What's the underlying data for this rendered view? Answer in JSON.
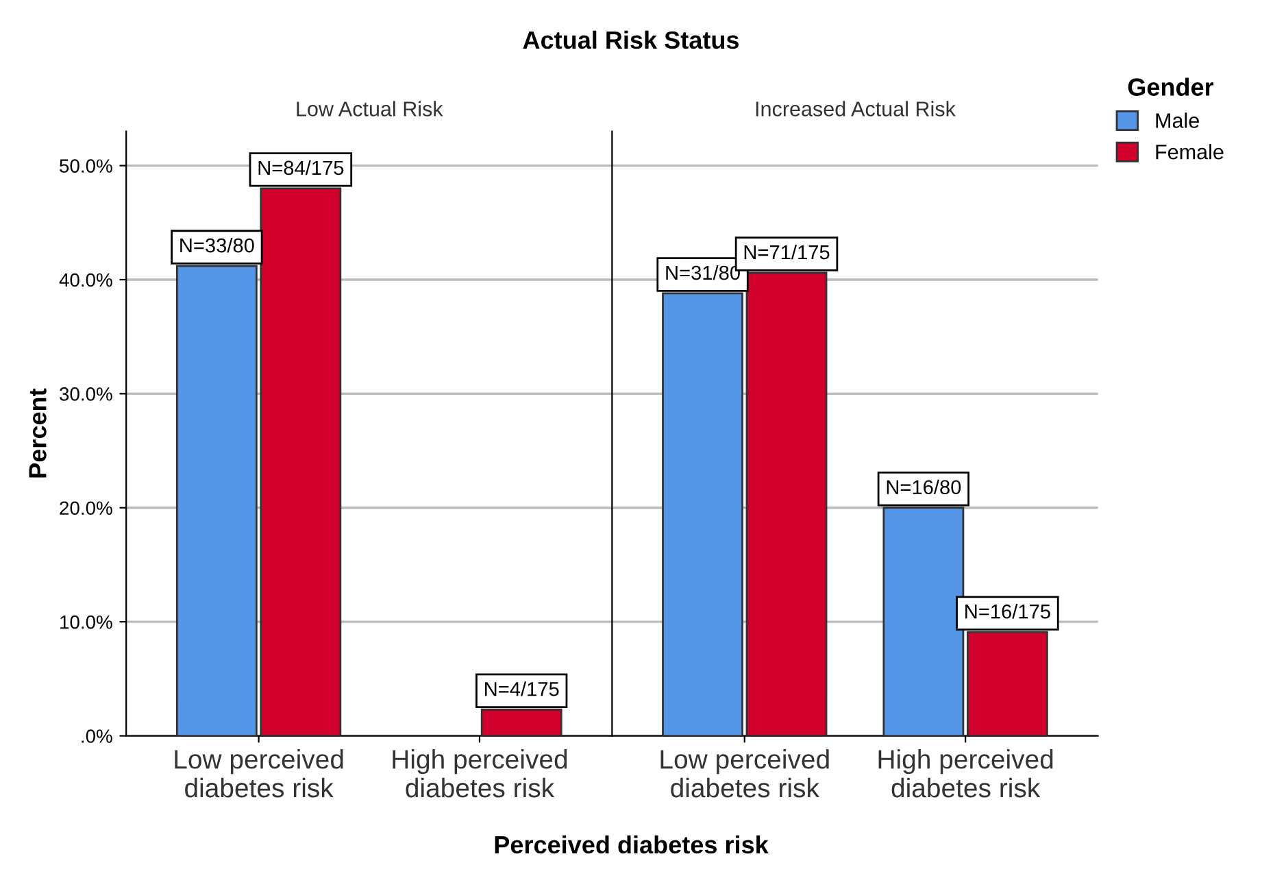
{
  "chart_data": [
    {
      "type": "bar",
      "title": "Actual Risk Status",
      "subtitle": "Low Actual Risk",
      "xlabel": "Perceived diabetes risk",
      "ylabel": "Percent",
      "categories": [
        "Low perceived\ndiabetes risk",
        "High perceived\ndiabetes risk"
      ],
      "series": [
        {
          "color": "#5596e6",
          "values": [
            41.2,
            null
          ]
        },
        {
          "color": "#d2002c",
          "values": [
            48.0,
            2.3
          ]
        }
      ],
      "ylim": [
        0,
        53
      ],
      "yticks": [
        {
          "value": 0,
          "label": ".0%"
        },
        {
          "value": 10,
          "label": "10.0%"
        },
        {
          "value": 20,
          "label": "20.0%"
        },
        {
          "value": 30,
          "label": "30.0%"
        },
        {
          "value": 40,
          "label": "40.0%"
        },
        {
          "value": 50,
          "label": "50.0%"
        }
      ],
      "grid": "y",
      "annotations": [
        {
          "text": "N=33/80",
          "x": "Low perceived\ndiabetes risk",
          "y": 41.2
        },
        {
          "text": "N=84/175",
          "x": "Low perceived\ndiabetes risk",
          "y": 48.0
        },
        {
          "text": "N=4/175",
          "x": "High perceived\ndiabetes risk",
          "y": 2.3
        }
      ]
    },
    {
      "type": "bar",
      "subtitle": "Increased Actual Risk",
      "legend_title": "Gender",
      "categories": [
        "Low perceived\ndiabetes risk",
        "High perceived\ndiabetes risk"
      ],
      "series": [
        {
          "name": "Male",
          "color": "#5596e6",
          "values": [
            38.8,
            20.0
          ]
        },
        {
          "name": "Female",
          "color": "#d2002c",
          "values": [
            40.6,
            9.1
          ]
        }
      ],
      "ylim": [
        0,
        53
      ],
      "yticks": [
        0,
        10,
        20,
        30,
        40,
        50
      ],
      "grid": "y",
      "legend": "top right",
      "tick_labels": "x",
      "annotations": [
        {
          "text": "N=31/80",
          "x": "Low perceived\ndiabetes risk",
          "y": 38.8
        },
        {
          "text": "N=71/175",
          "x": "Low perceived\ndiabetes risk",
          "y": 40.6
        },
        {
          "text": "N=16/80",
          "x": "High perceived\ndiabetes risk",
          "y": 20.0
        },
        {
          "text": "N=16/175",
          "x": "High perceived\ndiabetes risk",
          "y": 9.1
        }
      ]
    }
  ]
}
